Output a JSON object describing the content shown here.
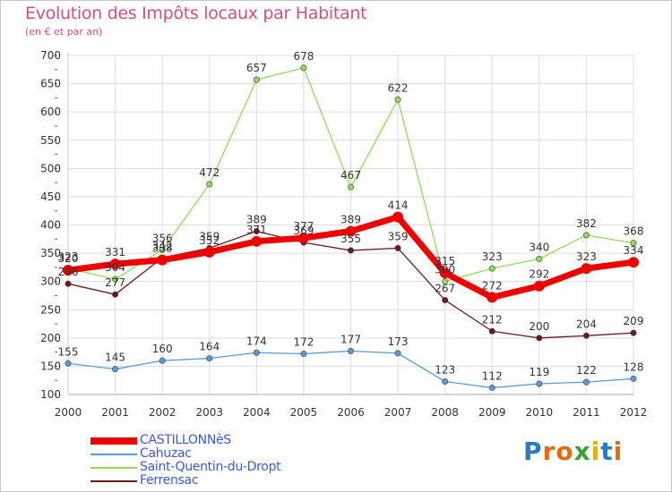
{
  "title": "Evolution des Impôts locaux par Habitant",
  "subtitle": "(en € et par an)",
  "logo": {
    "text": "Proxiti",
    "letters": [
      "P",
      "r",
      "o",
      "x",
      "i",
      "t",
      "i"
    ],
    "colors": [
      "#2a7ac6",
      "#e06a10",
      "#e06a10",
      "#3aa03a",
      "#e0b010",
      "#2a7ac6",
      "#e06a10"
    ]
  },
  "chart_data": {
    "type": "line",
    "x": [
      "2000",
      "2001",
      "2002",
      "2003",
      "2004",
      "2005",
      "2006",
      "2007",
      "2008",
      "2009",
      "2010",
      "2011",
      "2012"
    ],
    "ylim": [
      100,
      700
    ],
    "yticks": [
      100,
      150,
      200,
      250,
      300,
      350,
      400,
      450,
      500,
      550,
      600,
      650,
      700
    ],
    "grid": true,
    "legend": "bottom-left",
    "series": [
      {
        "name": "CASTILLONNèS",
        "color": "#ee0000",
        "values": [
          320,
          331,
          338,
          352,
          371,
          377,
          389,
          414,
          315,
          272,
          292,
          323,
          334
        ]
      },
      {
        "name": "Cahuzac",
        "color": "#5b9bd5",
        "values": [
          155,
          145,
          160,
          164,
          174,
          172,
          177,
          173,
          123,
          112,
          119,
          122,
          128
        ]
      },
      {
        "name": "Saint-Quentin-du-Dropt",
        "color": "#8fdc5a",
        "values": [
          323,
          304,
          356,
          472,
          657,
          678,
          467,
          622,
          300,
          323,
          340,
          382,
          368
        ]
      },
      {
        "name": "Ferrensac",
        "color": "#6b1a1a",
        "values": [
          296,
          277,
          342,
          359,
          389,
          369,
          355,
          359,
          267,
          212,
          200,
          204,
          209
        ]
      }
    ]
  }
}
